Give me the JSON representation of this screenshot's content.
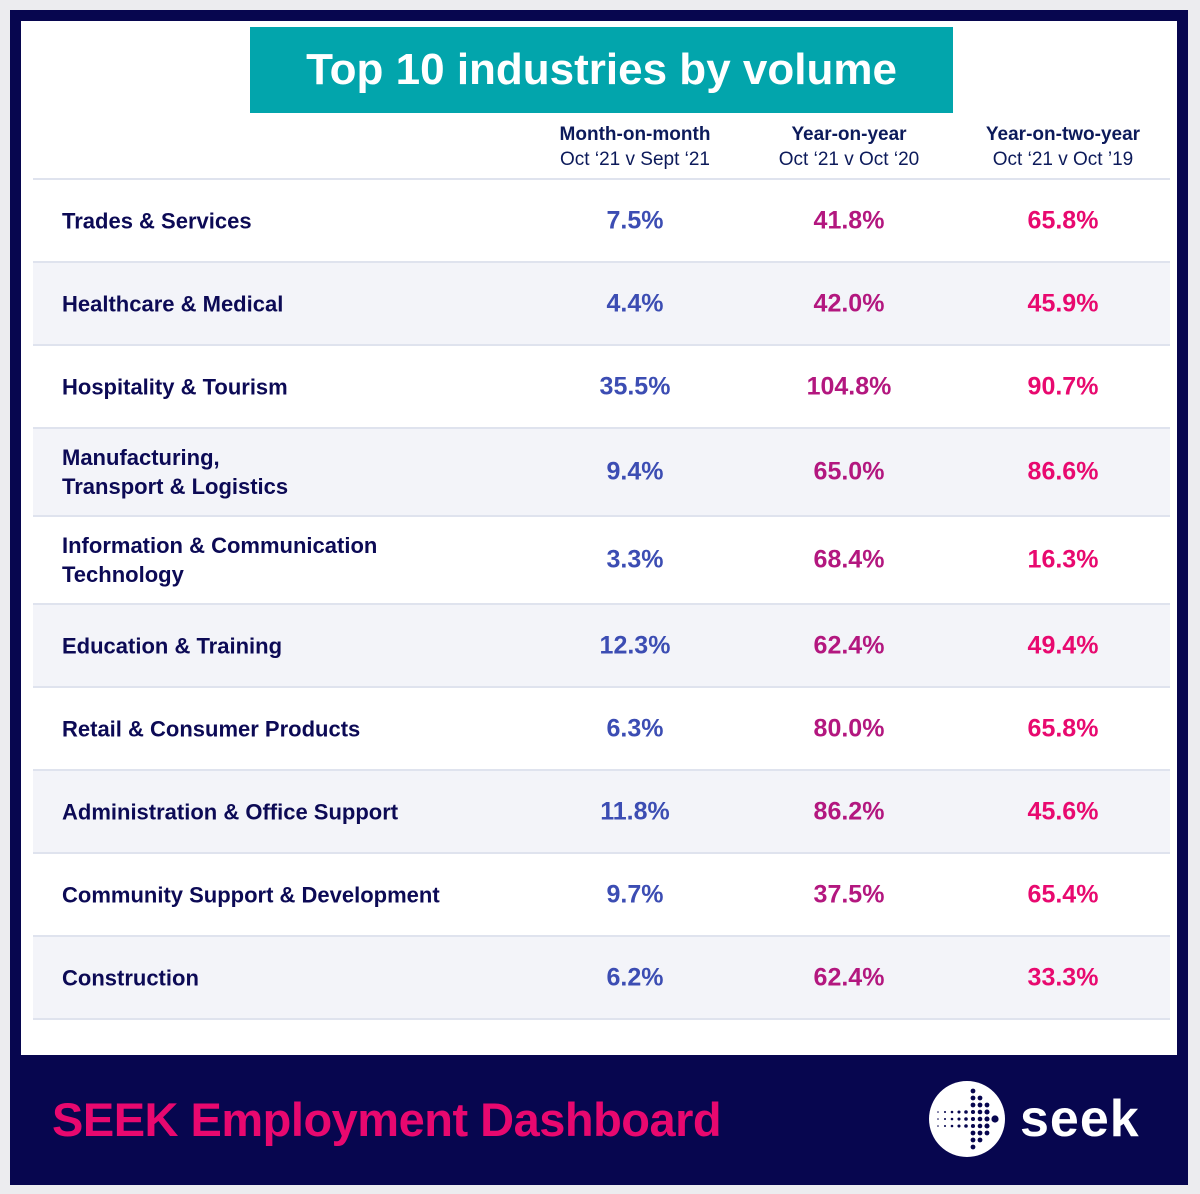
{
  "title": "Top 10 industries by volume",
  "columns": [
    {
      "heading": "Month-on-month",
      "subheading": "Oct ‘21 v Sept ‘21"
    },
    {
      "heading": "Year-on-year",
      "subheading": "Oct ‘21 v Oct ‘20"
    },
    {
      "heading": "Year-on-two-year",
      "subheading": "Oct ‘21 v Oct ’19"
    }
  ],
  "rows": [
    {
      "industry": "Trades & Services",
      "mom": "7.5%",
      "yoy": "41.8%",
      "yo2y": "65.8%"
    },
    {
      "industry": "Healthcare & Medical",
      "mom": "4.4%",
      "yoy": "42.0%",
      "yo2y": "45.9%"
    },
    {
      "industry": "Hospitality & Tourism",
      "mom": "35.5%",
      "yoy": "104.8%",
      "yo2y": "90.7%"
    },
    {
      "industry": "Manufacturing,\nTransport & Logistics",
      "mom": "9.4%",
      "yoy": "65.0%",
      "yo2y": "86.6%"
    },
    {
      "industry": "Information & Communication\nTechnology",
      "mom": "3.3%",
      "yoy": "68.4%",
      "yo2y": "16.3%"
    },
    {
      "industry": "Education & Training",
      "mom": "12.3%",
      "yoy": "62.4%",
      "yo2y": "49.4%"
    },
    {
      "industry": "Retail & Consumer Products",
      "mom": "6.3%",
      "yoy": "80.0%",
      "yo2y": "65.8%"
    },
    {
      "industry": "Administration & Office Support",
      "mom": "11.8%",
      "yoy": "86.2%",
      "yo2y": "45.6%"
    },
    {
      "industry": "Community Support & Development",
      "mom": "9.7%",
      "yoy": "37.5%",
      "yo2y": "65.4%"
    },
    {
      "industry": "Construction",
      "mom": "6.2%",
      "yoy": "62.4%",
      "yo2y": "33.3%"
    }
  ],
  "footer": {
    "title": "SEEK Employment Dashboard",
    "logo_text": "seek",
    "logo_icon": "seek-dotted-arrow-icon"
  },
  "colors": {
    "navy": "#07064f",
    "teal": "#02a5ac",
    "mom": "#3c4db3",
    "yoy": "#b3177f",
    "yo2y": "#e8096f",
    "brand_pink": "#e8086f"
  }
}
